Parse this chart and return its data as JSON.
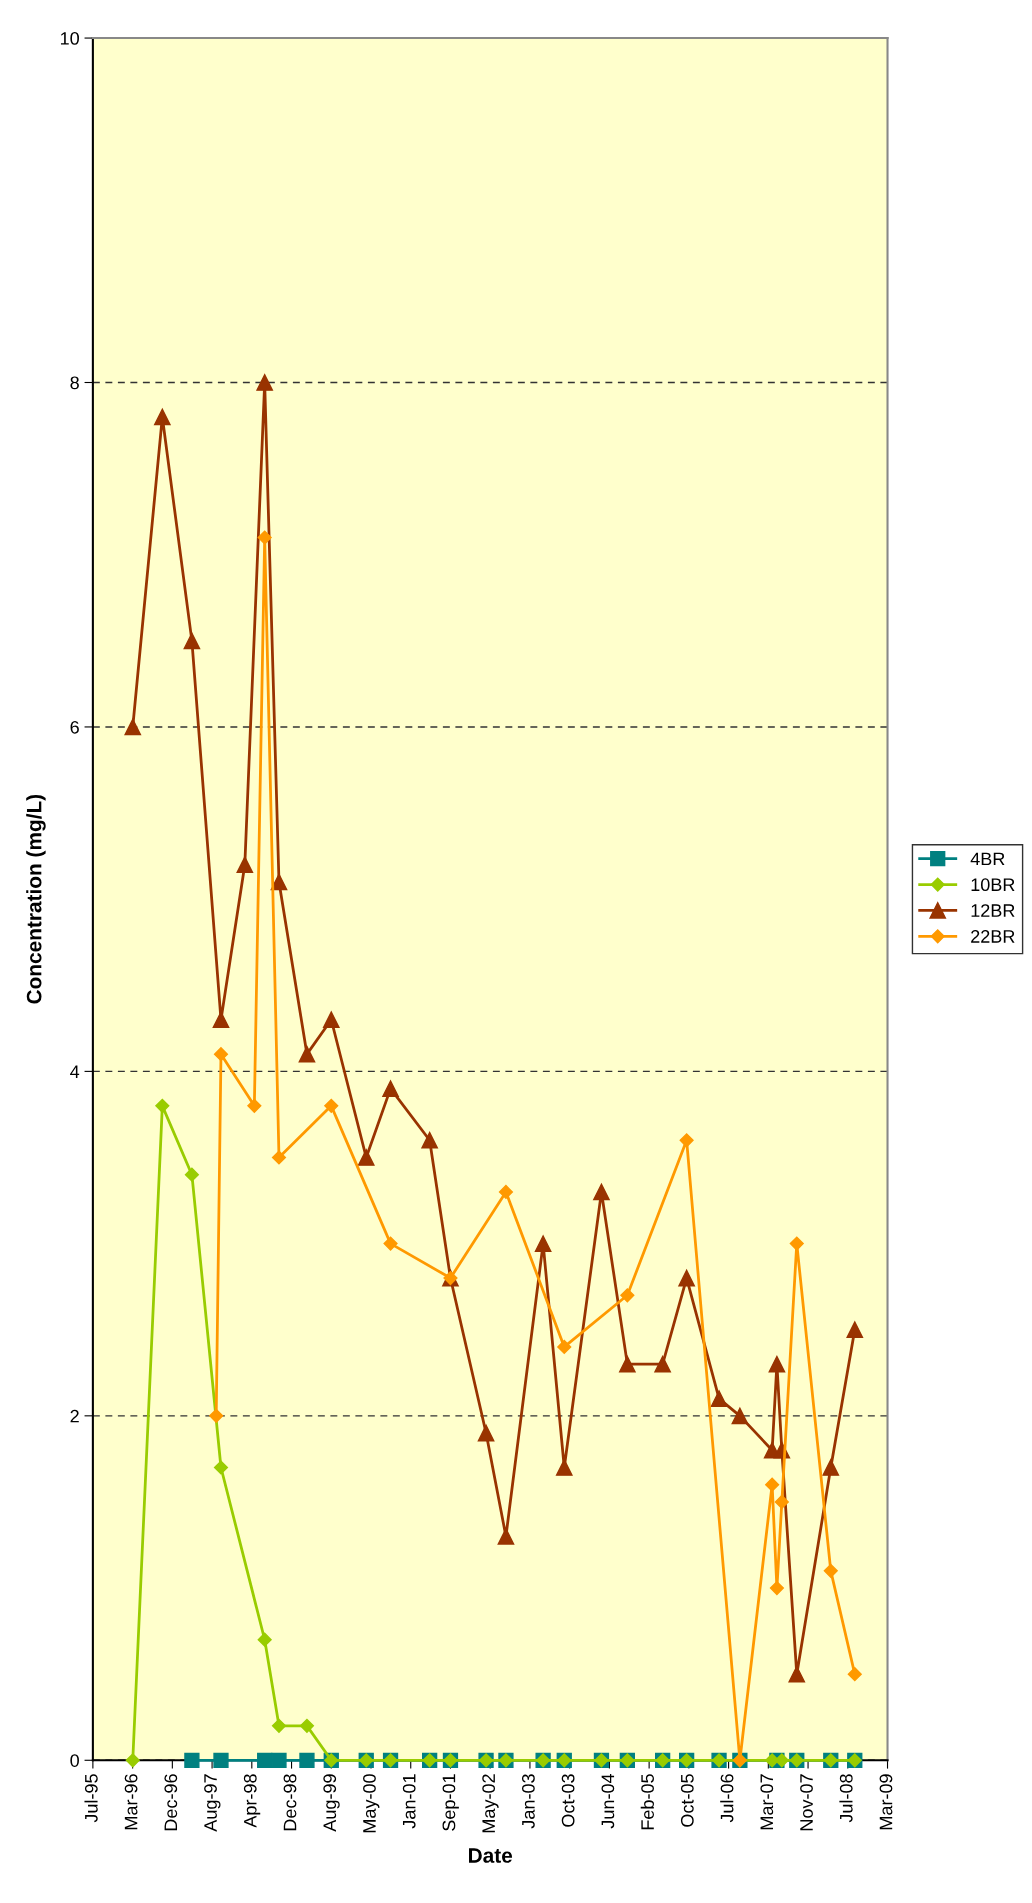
{
  "chart_data": {
    "type": "line",
    "xlabel": "Date",
    "ylabel": "Concentration (mg/L)",
    "xlim": [
      "1995-07-20",
      "2009-03-28"
    ],
    "xticks": [
      {
        "value": "1995-07-20",
        "label": "Jul-95"
      },
      {
        "value": "1996-03-26",
        "label": "Mar-96"
      },
      {
        "value": "1996-12-01",
        "label": "Dec-96"
      },
      {
        "value": "1997-08-08",
        "label": "Aug-97"
      },
      {
        "value": "1998-04-15",
        "label": "Apr-98"
      },
      {
        "value": "1998-12-21",
        "label": "Dec-98"
      },
      {
        "value": "1999-08-28",
        "label": "Aug-99"
      },
      {
        "value": "2000-05-04",
        "label": "May-00"
      },
      {
        "value": "2001-01-09",
        "label": "Jan-01"
      },
      {
        "value": "2001-09-16",
        "label": "Sep-01"
      },
      {
        "value": "2002-05-24",
        "label": "May-02"
      },
      {
        "value": "2003-01-29",
        "label": "Jan-03"
      },
      {
        "value": "2003-10-06",
        "label": "Oct-03"
      },
      {
        "value": "2004-06-12",
        "label": "Jun-04"
      },
      {
        "value": "2005-02-17",
        "label": "Feb-05"
      },
      {
        "value": "2005-10-25",
        "label": "Oct-05"
      },
      {
        "value": "2006-07-02",
        "label": "Jul-06"
      },
      {
        "value": "2007-03-09",
        "label": "Mar-07"
      },
      {
        "value": "2007-11-14",
        "label": "Nov-07"
      },
      {
        "value": "2008-07-21",
        "label": "Jul-08"
      },
      {
        "value": "2009-03-28",
        "label": "Mar-09"
      }
    ],
    "ylim": [
      0,
      10
    ],
    "yticks": [
      0,
      2,
      4,
      6,
      8,
      10
    ],
    "grid": "y",
    "legend": "right",
    "line_style": "solid",
    "series": [
      {
        "name": "4BR",
        "color": "#008080",
        "marker": "square",
        "x": [
          "1997-04-03",
          "1997-10-03",
          "1998-07-05",
          "1998-10-03",
          "1999-03-28",
          "1999-08-28",
          "2000-04-04",
          "2000-09-04",
          "2001-05-08",
          "2001-09-16",
          "2002-04-28",
          "2002-08-31",
          "2003-04-22",
          "2003-09-02",
          "2004-04-23",
          "2004-10-03",
          "2005-05-13",
          "2005-10-11",
          "2006-05-03",
          "2006-09-11",
          "2007-05-02",
          "2007-09-04",
          "2008-04-05",
          "2008-09-03"
        ],
        "values": [
          0,
          0,
          0,
          0,
          0,
          0,
          0,
          0,
          0,
          0,
          0,
          0,
          0,
          0,
          0,
          0,
          0,
          0,
          0,
          0,
          0,
          0,
          0,
          0
        ]
      },
      {
        "name": "10BR",
        "color": "#99cc00",
        "marker": "diamond",
        "x": [
          "1996-03-27",
          "1996-09-29",
          "1997-04-03",
          "1997-10-03",
          "1998-07-05",
          "1998-10-03",
          "1999-03-28",
          "1999-08-28",
          "2000-04-04",
          "2000-09-04",
          "2001-05-08",
          "2001-09-16",
          "2002-04-28",
          "2002-08-31",
          "2003-04-22",
          "2003-09-02",
          "2004-04-23",
          "2004-10-03",
          "2005-05-13",
          "2005-10-11",
          "2006-05-03",
          "2006-09-11",
          "2007-04-02",
          "2007-06-02",
          "2007-09-04",
          "2008-04-05",
          "2008-09-03"
        ],
        "values": [
          0,
          3.8,
          3.4,
          1.7,
          0.7,
          0.2,
          0.2,
          0,
          0,
          0,
          0,
          0,
          0,
          0,
          0,
          0,
          0,
          0,
          0,
          0,
          0,
          0,
          0,
          0,
          0,
          0,
          0
        ]
      },
      {
        "name": "12BR",
        "color": "#993300",
        "marker": "triangle",
        "x": [
          "1996-03-27",
          "1996-09-29",
          "1997-04-03",
          "1997-10-03",
          "1998-03-02",
          "1998-07-05",
          "1998-10-03",
          "1999-03-28",
          "1999-08-28",
          "2000-04-04",
          "2000-09-04",
          "2001-05-08",
          "2001-09-16",
          "2002-04-28",
          "2002-08-31",
          "2003-04-22",
          "2003-09-02",
          "2004-04-23",
          "2004-10-03",
          "2005-05-13",
          "2005-10-11",
          "2006-05-03",
          "2006-09-11",
          "2007-04-02",
          "2007-05-02",
          "2007-06-02",
          "2007-09-04",
          "2008-04-05",
          "2008-09-03"
        ],
        "values": [
          6.0,
          7.8,
          6.5,
          4.3,
          5.2,
          8.0,
          5.1,
          4.1,
          4.3,
          3.5,
          3.9,
          3.6,
          2.8,
          1.9,
          1.3,
          3.0,
          1.7,
          3.3,
          2.3,
          2.3,
          2.8,
          2.1,
          2.0,
          1.8,
          2.3,
          1.8,
          0.5,
          1.7,
          2.5
        ]
      },
      {
        "name": "22BR",
        "color": "#ff9900",
        "marker": "diamond",
        "x": [
          "1997-09-03",
          "1997-10-03",
          "1998-05-01",
          "1998-07-05",
          "1998-10-03",
          "1999-08-28",
          "2000-09-04",
          "2001-09-16",
          "2002-08-31",
          "2003-09-02",
          "2004-10-03",
          "2005-10-11",
          "2006-09-11",
          "2007-04-02",
          "2007-05-02",
          "2007-06-02",
          "2007-09-04",
          "2008-04-05",
          "2008-09-03"
        ],
        "values": [
          2.0,
          4.1,
          3.8,
          7.1,
          3.5,
          3.8,
          3.0,
          2.8,
          3.3,
          2.4,
          2.7,
          3.6,
          0,
          1.6,
          1.0,
          1.5,
          3.0,
          1.1,
          0.5
        ]
      }
    ]
  }
}
